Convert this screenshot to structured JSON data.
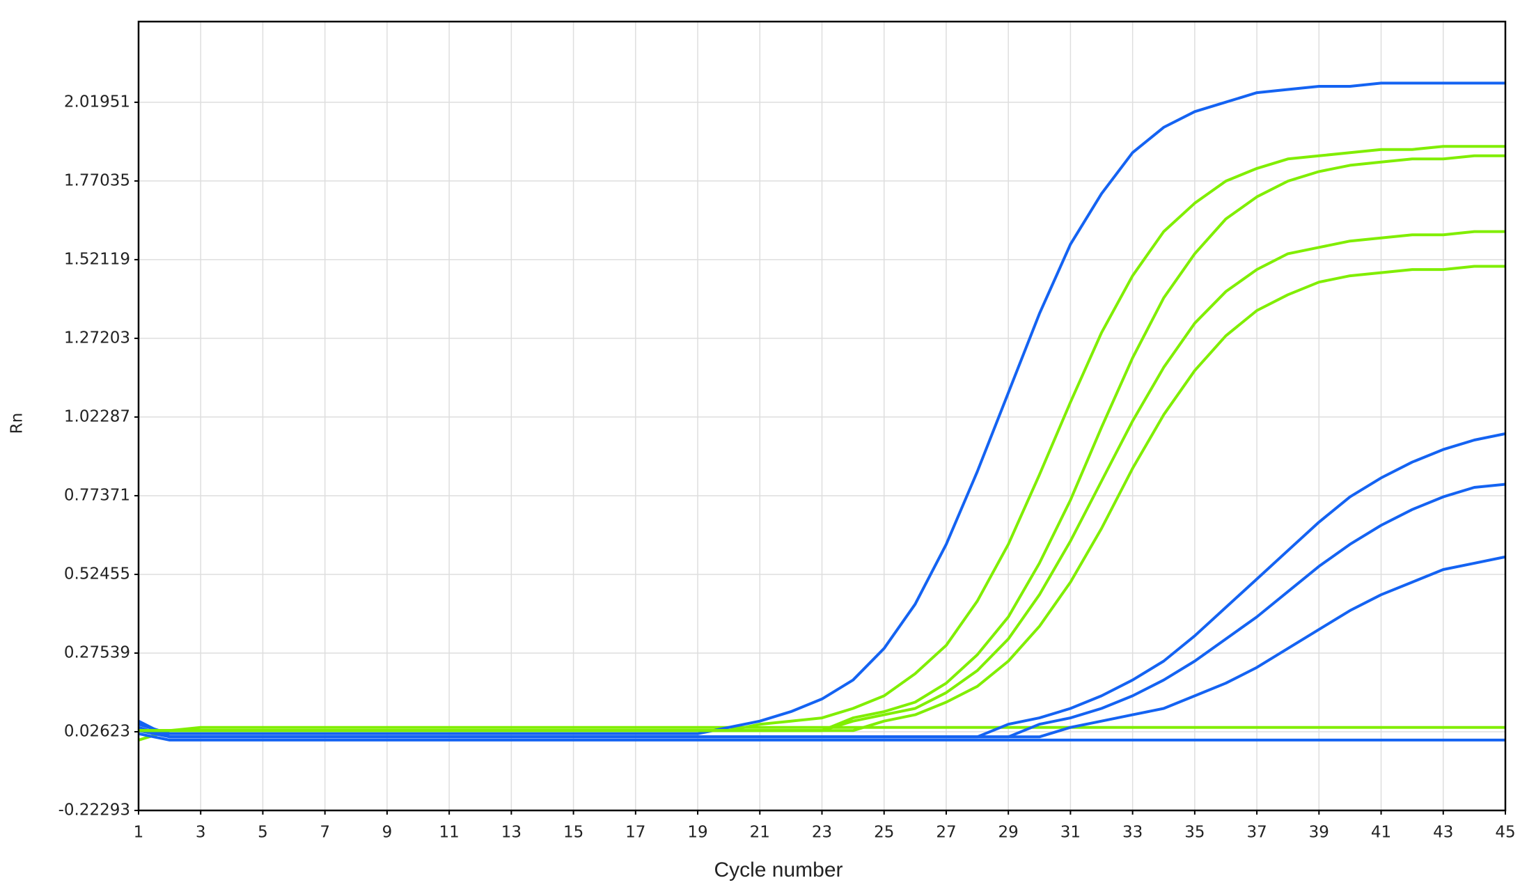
{
  "chart_data": {
    "type": "line",
    "x_label": "Cycle number",
    "y_label": "Rn",
    "x": [
      1,
      2,
      3,
      4,
      5,
      6,
      7,
      8,
      9,
      10,
      11,
      12,
      13,
      14,
      15,
      16,
      17,
      18,
      19,
      20,
      21,
      22,
      23,
      24,
      25,
      26,
      27,
      28,
      29,
      30,
      31,
      32,
      33,
      34,
      35,
      36,
      37,
      38,
      39,
      40,
      41,
      42,
      43,
      44,
      45
    ],
    "xlim": [
      1,
      45
    ],
    "xticks": [
      1,
      3,
      5,
      7,
      9,
      11,
      13,
      15,
      17,
      19,
      21,
      23,
      25,
      27,
      29,
      31,
      33,
      35,
      37,
      39,
      41,
      43,
      45
    ],
    "ylim": [
      -0.22293,
      2.275
    ],
    "yticks": [
      -0.22293,
      0.02623,
      0.27539,
      0.52455,
      0.77371,
      1.02287,
      1.27203,
      1.52119,
      1.77035,
      2.01951
    ],
    "grid": true,
    "series": [
      {
        "color": "#80ee00",
        "values": [
          0.0,
          0.03,
          0.04,
          0.04,
          0.04,
          0.04,
          0.04,
          0.04,
          0.04,
          0.04,
          0.04,
          0.04,
          0.04,
          0.04,
          0.04,
          0.04,
          0.04,
          0.04,
          0.04,
          0.04,
          0.04,
          0.04,
          0.04,
          0.04,
          0.04,
          0.04,
          0.04,
          0.04,
          0.04,
          0.04,
          0.04,
          0.04,
          0.04,
          0.04,
          0.04,
          0.04,
          0.04,
          0.04,
          0.04,
          0.04,
          0.04,
          0.04,
          0.04,
          0.04,
          0.04
        ]
      },
      {
        "color": "#1463f2",
        "values": [
          0.02,
          0.0,
          0.0,
          0.0,
          0.0,
          0.0,
          0.0,
          0.0,
          0.0,
          0.0,
          0.0,
          0.0,
          0.0,
          0.0,
          0.0,
          0.0,
          0.0,
          0.0,
          0.0,
          0.0,
          0.0,
          0.0,
          0.0,
          0.0,
          0.0,
          0.0,
          0.0,
          0.0,
          0.0,
          0.0,
          0.0,
          0.0,
          0.0,
          0.0,
          0.0,
          0.0,
          0.0,
          0.0,
          0.0,
          0.0,
          0.0,
          0.0,
          0.0,
          0.0,
          0.0
        ]
      },
      {
        "color": "#1463f2",
        "values": [
          0.05,
          0.02,
          0.02,
          0.02,
          0.02,
          0.02,
          0.02,
          0.02,
          0.02,
          0.02,
          0.02,
          0.02,
          0.02,
          0.02,
          0.02,
          0.02,
          0.02,
          0.02,
          0.02,
          0.04,
          0.06,
          0.09,
          0.13,
          0.19,
          0.29,
          0.43,
          0.62,
          0.85,
          1.1,
          1.35,
          1.57,
          1.73,
          1.86,
          1.94,
          1.99,
          2.02,
          2.05,
          2.06,
          2.07,
          2.07,
          2.08,
          2.08,
          2.08,
          2.08,
          2.08
        ]
      },
      {
        "color": "#1463f2",
        "values": [
          0.06,
          0.01,
          0.01,
          0.01,
          0.01,
          0.01,
          0.01,
          0.01,
          0.01,
          0.01,
          0.01,
          0.01,
          0.01,
          0.01,
          0.01,
          0.01,
          0.01,
          0.01,
          0.01,
          0.01,
          0.01,
          0.01,
          0.01,
          0.01,
          0.01,
          0.01,
          0.01,
          0.01,
          0.05,
          0.07,
          0.1,
          0.14,
          0.19,
          0.25,
          0.33,
          0.42,
          0.51,
          0.6,
          0.69,
          0.77,
          0.83,
          0.88,
          0.92,
          0.95,
          0.97
        ]
      },
      {
        "color": "#1463f2",
        "values": [
          0.04,
          0.01,
          0.01,
          0.01,
          0.01,
          0.01,
          0.01,
          0.01,
          0.01,
          0.01,
          0.01,
          0.01,
          0.01,
          0.01,
          0.01,
          0.01,
          0.01,
          0.01,
          0.01,
          0.01,
          0.01,
          0.01,
          0.01,
          0.01,
          0.01,
          0.01,
          0.01,
          0.01,
          0.01,
          0.05,
          0.07,
          0.1,
          0.14,
          0.19,
          0.25,
          0.32,
          0.39,
          0.47,
          0.55,
          0.62,
          0.68,
          0.73,
          0.77,
          0.8,
          0.81
        ]
      },
      {
        "color": "#1463f2",
        "values": [
          0.03,
          0.01,
          0.01,
          0.01,
          0.01,
          0.01,
          0.01,
          0.01,
          0.01,
          0.01,
          0.01,
          0.01,
          0.01,
          0.01,
          0.01,
          0.01,
          0.01,
          0.01,
          0.01,
          0.01,
          0.01,
          0.01,
          0.01,
          0.01,
          0.01,
          0.01,
          0.01,
          0.01,
          0.01,
          0.01,
          0.04,
          0.06,
          0.08,
          0.1,
          0.14,
          0.18,
          0.23,
          0.29,
          0.35,
          0.41,
          0.46,
          0.5,
          0.54,
          0.56,
          0.58
        ]
      },
      {
        "color": "#80ee00",
        "values": [
          0.03,
          0.03,
          0.03,
          0.03,
          0.03,
          0.03,
          0.03,
          0.03,
          0.03,
          0.03,
          0.03,
          0.03,
          0.03,
          0.03,
          0.03,
          0.03,
          0.03,
          0.03,
          0.03,
          0.03,
          0.05,
          0.06,
          0.07,
          0.1,
          0.14,
          0.21,
          0.3,
          0.44,
          0.62,
          0.84,
          1.07,
          1.29,
          1.47,
          1.61,
          1.7,
          1.77,
          1.81,
          1.84,
          1.85,
          1.86,
          1.87,
          1.87,
          1.88,
          1.88,
          1.88
        ]
      },
      {
        "color": "#80ee00",
        "values": [
          0.03,
          0.03,
          0.03,
          0.03,
          0.03,
          0.03,
          0.03,
          0.03,
          0.03,
          0.03,
          0.03,
          0.03,
          0.03,
          0.03,
          0.03,
          0.03,
          0.03,
          0.03,
          0.03,
          0.03,
          0.03,
          0.03,
          0.03,
          0.07,
          0.09,
          0.12,
          0.18,
          0.27,
          0.39,
          0.56,
          0.76,
          0.99,
          1.21,
          1.4,
          1.54,
          1.65,
          1.72,
          1.77,
          1.8,
          1.82,
          1.83,
          1.84,
          1.84,
          1.85,
          1.85
        ]
      },
      {
        "color": "#80ee00",
        "values": [
          0.03,
          0.03,
          0.03,
          0.03,
          0.03,
          0.03,
          0.03,
          0.03,
          0.03,
          0.03,
          0.03,
          0.03,
          0.03,
          0.03,
          0.03,
          0.03,
          0.03,
          0.03,
          0.03,
          0.03,
          0.03,
          0.03,
          0.03,
          0.06,
          0.08,
          0.1,
          0.15,
          0.22,
          0.32,
          0.46,
          0.63,
          0.82,
          1.01,
          1.18,
          1.32,
          1.42,
          1.49,
          1.54,
          1.56,
          1.58,
          1.59,
          1.6,
          1.6,
          1.61,
          1.61
        ]
      },
      {
        "color": "#80ee00",
        "values": [
          0.03,
          0.03,
          0.03,
          0.03,
          0.03,
          0.03,
          0.03,
          0.03,
          0.03,
          0.03,
          0.03,
          0.03,
          0.03,
          0.03,
          0.03,
          0.03,
          0.03,
          0.03,
          0.03,
          0.03,
          0.03,
          0.03,
          0.03,
          0.03,
          0.06,
          0.08,
          0.12,
          0.17,
          0.25,
          0.36,
          0.5,
          0.67,
          0.86,
          1.03,
          1.17,
          1.28,
          1.36,
          1.41,
          1.45,
          1.47,
          1.48,
          1.49,
          1.49,
          1.5,
          1.5
        ]
      }
    ]
  }
}
